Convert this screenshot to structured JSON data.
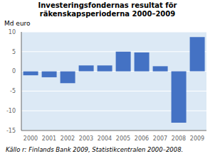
{
  "chart_data": {
    "type": "bar",
    "title": "Investeringsfondernas resultat för\nräkenskapsperioderna 2000–2009",
    "ylabel": "Md euro",
    "caption": "Källo r: Finlands Bank 2009, Statistikcentralen 2000–2008.",
    "categories": [
      "2000",
      "2001",
      "2002",
      "2003",
      "2004",
      "2005",
      "2006",
      "2007",
      "2008",
      "2009"
    ],
    "values": [
      -1.0,
      -1.5,
      -3.0,
      1.5,
      1.5,
      5.0,
      4.8,
      1.3,
      -13.0,
      8.7
    ],
    "color": "#4472C4",
    "ylim": [
      -15,
      10
    ],
    "yticks": [
      -15,
      -10,
      -5,
      0,
      5,
      10
    ],
    "grid": true
  }
}
